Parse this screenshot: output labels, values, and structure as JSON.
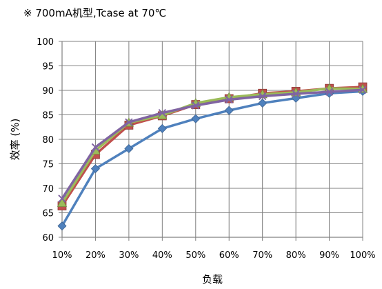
{
  "chart_data": {
    "type": "line",
    "title": "※ 700mA机型,Tcase at 70℃",
    "xlabel": "负载",
    "ylabel": "效率 (%)",
    "categories": [
      "10%",
      "20%",
      "30%",
      "40%",
      "50%",
      "60%",
      "70%",
      "80%",
      "90%",
      "100%"
    ],
    "ylim": [
      60,
      100
    ],
    "yticks": [
      "60",
      "65",
      "70",
      "75",
      "80",
      "85",
      "90",
      "95",
      "100"
    ],
    "grid": true,
    "legend": "none",
    "series": [
      {
        "color": "#4f81bd",
        "marker": "diamond",
        "values": [
          62.3,
          74.0,
          78.1,
          82.2,
          84.2,
          85.9,
          87.4,
          88.4,
          89.4,
          89.8
        ]
      },
      {
        "color": "#c0504d",
        "marker": "square",
        "values": [
          66.4,
          76.9,
          82.9,
          84.8,
          87.1,
          88.3,
          89.4,
          89.8,
          90.4,
          90.7
        ]
      },
      {
        "color": "#9bbb59",
        "marker": "triangle",
        "values": [
          67.0,
          77.7,
          83.4,
          84.9,
          87.4,
          88.6,
          89.2,
          89.6,
          90.4,
          90.3
        ]
      },
      {
        "color": "#8064a2",
        "marker": "x",
        "values": [
          67.9,
          78.4,
          83.5,
          85.4,
          86.9,
          88.1,
          88.8,
          89.3,
          89.7,
          90.1
        ]
      }
    ]
  }
}
